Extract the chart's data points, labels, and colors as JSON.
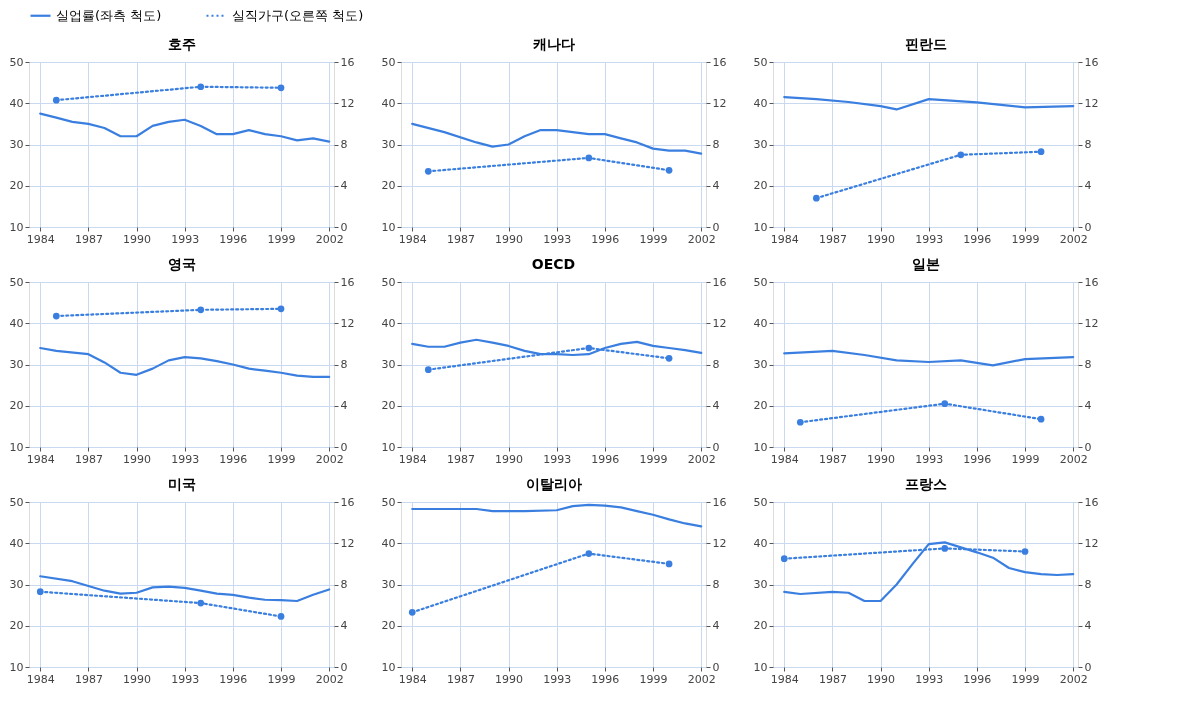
{
  "chart_data": [
    {
      "type": "line",
      "title": "호주",
      "legend": "top",
      "grid": true,
      "xlim": [
        1983.3,
        2002.3
      ],
      "xticks": [
        1984,
        1987,
        1990,
        1993,
        1996,
        1999,
        2002
      ],
      "ylim": [
        10,
        50
      ],
      "yticks": [
        10,
        20,
        30,
        40,
        50
      ],
      "y2lim": [
        0,
        16
      ],
      "y2ticks": [
        0,
        4,
        8,
        12,
        16
      ],
      "series": [
        {
          "name": "실업률(좌측 척도)",
          "color": "#3a7fe0",
          "line_style": "solid",
          "x": [
            1984,
            1985,
            1986,
            1987,
            1988,
            1989,
            1990,
            1991,
            1992,
            1993,
            1994,
            1995,
            1996,
            1997,
            1998,
            1999,
            2000,
            2001,
            2002
          ],
          "values": [
            37.5,
            36.5,
            35.5,
            35,
            34,
            32,
            32,
            34.5,
            35.5,
            36,
            34.5,
            32.5,
            32.5,
            33.5,
            32.5,
            32,
            31,
            31.5,
            30.7
          ]
        },
        {
          "name": "실직가구(오른쪽 척도)",
          "color": "#3a7fe0",
          "axis": "y2",
          "line_style": "dotted",
          "marker": "circle",
          "x": [
            1985,
            1994,
            1999
          ],
          "values": [
            12.3,
            13.6,
            13.5
          ]
        }
      ]
    },
    {
      "type": "line",
      "title": "캐나다",
      "grid": true,
      "xlim": [
        1983.3,
        2002.3
      ],
      "xticks": [
        1984,
        1987,
        1990,
        1993,
        1996,
        1999,
        2002
      ],
      "ylim": [
        10,
        50
      ],
      "yticks": [
        10,
        20,
        30,
        40,
        50
      ],
      "y2lim": [
        0,
        16
      ],
      "y2ticks": [
        0,
        4,
        8,
        12,
        16
      ],
      "series": [
        {
          "name": "실업률(좌측 척도)",
          "color": "#3a7fe0",
          "line_style": "solid",
          "x": [
            1984,
            1986,
            1988,
            1989,
            1990,
            1991,
            1992,
            1993,
            1994,
            1995,
            1996,
            1997,
            1998,
            1999,
            2000,
            2001,
            2002
          ],
          "values": [
            35,
            33,
            30.5,
            29.5,
            30,
            32,
            33.5,
            33.5,
            33,
            32.5,
            32.5,
            31.5,
            30.5,
            29,
            28.5,
            28.5,
            27.8
          ]
        },
        {
          "name": "실직가구(오른쪽 척도)",
          "color": "#3a7fe0",
          "axis": "y2",
          "line_style": "dotted",
          "marker": "circle",
          "x": [
            1985,
            1995,
            2000
          ],
          "values": [
            5.4,
            6.7,
            5.5
          ]
        }
      ]
    },
    {
      "type": "line",
      "title": "핀란드",
      "grid": true,
      "xlim": [
        1983.3,
        2002.3
      ],
      "xticks": [
        1984,
        1987,
        1990,
        1993,
        1996,
        1999,
        2002
      ],
      "ylim": [
        10,
        50
      ],
      "yticks": [
        10,
        20,
        30,
        40,
        50
      ],
      "y2lim": [
        0,
        16
      ],
      "y2ticks": [
        0,
        4,
        8,
        12,
        16
      ],
      "series": [
        {
          "name": "실업률(좌측 척도)",
          "color": "#3a7fe0",
          "line_style": "solid",
          "x": [
            1984,
            1986,
            1988,
            1990,
            1991,
            1993,
            1996,
            1999,
            2002
          ],
          "values": [
            41.5,
            41,
            40.3,
            39.3,
            38.5,
            41,
            40.2,
            39,
            39.3
          ]
        },
        {
          "name": "실직가구(오른쪽 척도)",
          "color": "#3a7fe0",
          "axis": "y2",
          "line_style": "dotted",
          "marker": "circle",
          "x": [
            1986,
            1995,
            2000
          ],
          "values": [
            2.8,
            7.0,
            7.3
          ]
        }
      ]
    },
    {
      "type": "line",
      "title": "영국",
      "grid": true,
      "xlim": [
        1983.3,
        2002.3
      ],
      "xticks": [
        1984,
        1987,
        1990,
        1993,
        1996,
        1999,
        2002
      ],
      "ylim": [
        10,
        50
      ],
      "yticks": [
        10,
        20,
        30,
        40,
        50
      ],
      "y2lim": [
        0,
        16
      ],
      "y2ticks": [
        0,
        4,
        8,
        12,
        16
      ],
      "series": [
        {
          "name": "실업률(좌측 척도)",
          "color": "#3a7fe0",
          "line_style": "solid",
          "x": [
            1984,
            1985,
            1987,
            1988,
            1989,
            1990,
            1991,
            1992,
            1993,
            1994,
            1995,
            1996,
            1997,
            1998,
            1999,
            2000,
            2001,
            2002
          ],
          "values": [
            34,
            33.3,
            32.5,
            30.5,
            28,
            27.5,
            29,
            31,
            31.8,
            31.5,
            30.8,
            30,
            29,
            28.5,
            28,
            27.3,
            27,
            27
          ]
        },
        {
          "name": "실직가구(오른쪽 척도)",
          "color": "#3a7fe0",
          "axis": "y2",
          "line_style": "dotted",
          "marker": "circle",
          "x": [
            1985,
            1994,
            1999
          ],
          "values": [
            12.7,
            13.3,
            13.4
          ]
        }
      ]
    },
    {
      "type": "line",
      "title": "OECD",
      "grid": true,
      "xlim": [
        1983.3,
        2002.3
      ],
      "xticks": [
        1984,
        1987,
        1990,
        1993,
        1996,
        1999,
        2002
      ],
      "ylim": [
        10,
        50
      ],
      "yticks": [
        10,
        20,
        30,
        40,
        50
      ],
      "y2lim": [
        0,
        16
      ],
      "y2ticks": [
        0,
        4,
        8,
        12,
        16
      ],
      "series": [
        {
          "name": "실업률(좌측 척도)",
          "color": "#3a7fe0",
          "line_style": "solid",
          "x": [
            1984,
            1985,
            1986,
            1987,
            1988,
            1989,
            1990,
            1991,
            1992,
            1993,
            1994,
            1995,
            1996,
            1997,
            1998,
            1999,
            2000,
            2001,
            2002
          ],
          "values": [
            35,
            34.3,
            34.3,
            35.3,
            36,
            35.3,
            34.5,
            33.3,
            32.5,
            32.5,
            32.3,
            32.5,
            34,
            35,
            35.5,
            34.5,
            34,
            33.5,
            32.8
          ]
        },
        {
          "name": "실직가구(오른쪽 척도)",
          "color": "#3a7fe0",
          "axis": "y2",
          "line_style": "dotted",
          "marker": "circle",
          "x": [
            1985,
            1995,
            2000
          ],
          "values": [
            7.5,
            9.6,
            8.6
          ]
        }
      ]
    },
    {
      "type": "line",
      "title": "일본",
      "grid": true,
      "xlim": [
        1983.3,
        2002.3
      ],
      "xticks": [
        1984,
        1987,
        1990,
        1993,
        1996,
        1999,
        2002
      ],
      "ylim": [
        10,
        50
      ],
      "yticks": [
        10,
        20,
        30,
        40,
        50
      ],
      "y2lim": [
        0,
        16
      ],
      "y2ticks": [
        0,
        4,
        8,
        12,
        16
      ],
      "series": [
        {
          "name": "실업률(좌측 척도)",
          "color": "#3a7fe0",
          "line_style": "solid",
          "x": [
            1984,
            1987,
            1989,
            1991,
            1993,
            1995,
            1997,
            1999,
            2002
          ],
          "values": [
            32.7,
            33.3,
            32.3,
            31,
            30.6,
            31,
            29.8,
            31.3,
            31.8
          ]
        },
        {
          "name": "실직가구(오른쪽 척도)",
          "color": "#3a7fe0",
          "axis": "y2",
          "line_style": "dotted",
          "marker": "circle",
          "x": [
            1985,
            1994,
            2000
          ],
          "values": [
            2.4,
            4.2,
            2.7
          ]
        }
      ]
    },
    {
      "type": "line",
      "title": "미국",
      "grid": true,
      "xlim": [
        1983.3,
        2002.3
      ],
      "xticks": [
        1984,
        1987,
        1990,
        1993,
        1996,
        1999,
        2002
      ],
      "ylim": [
        10,
        50
      ],
      "yticks": [
        10,
        20,
        30,
        40,
        50
      ],
      "y2lim": [
        0,
        16
      ],
      "y2ticks": [
        0,
        4,
        8,
        12,
        16
      ],
      "series": [
        {
          "name": "실업률(좌측 척도)",
          "color": "#3a7fe0",
          "line_style": "solid",
          "x": [
            1984,
            1986,
            1988,
            1989,
            1990,
            1991,
            1992,
            1993,
            1994,
            1995,
            1996,
            1997,
            1998,
            1999,
            2000,
            2001,
            2002
          ],
          "values": [
            32,
            30.8,
            28.5,
            27.8,
            28,
            29.3,
            29.5,
            29.2,
            28.5,
            27.8,
            27.5,
            26.8,
            26.3,
            26.2,
            26,
            27.5,
            28.8
          ]
        },
        {
          "name": "실직가구(오른쪽 척도)",
          "color": "#3a7fe0",
          "axis": "y2",
          "line_style": "dotted",
          "marker": "circle",
          "x": [
            1984,
            1994,
            1999
          ],
          "values": [
            7.3,
            6.2,
            4.9
          ]
        }
      ]
    },
    {
      "type": "line",
      "title": "이탈리아",
      "grid": true,
      "xlim": [
        1983.3,
        2002.3
      ],
      "xticks": [
        1984,
        1987,
        1990,
        1993,
        1996,
        1999,
        2002
      ],
      "ylim": [
        10,
        50
      ],
      "yticks": [
        10,
        20,
        30,
        40,
        50
      ],
      "y2lim": [
        0,
        16
      ],
      "y2ticks": [
        0,
        4,
        8,
        12,
        16
      ],
      "series": [
        {
          "name": "실업률(좌측 척도)",
          "color": "#3a7fe0",
          "line_style": "solid",
          "x": [
            1984,
            1986,
            1988,
            1989,
            1991,
            1993,
            1994,
            1995,
            1996,
            1997,
            1998,
            1999,
            2000,
            2001,
            2002
          ],
          "values": [
            48.3,
            48.3,
            48.3,
            47.8,
            47.8,
            48,
            49,
            49.3,
            49.1,
            48.7,
            47.8,
            46.9,
            45.8,
            44.8,
            44.1
          ]
        },
        {
          "name": "실직가구(오른쪽 척도)",
          "color": "#3a7fe0",
          "axis": "y2",
          "line_style": "dotted",
          "marker": "circle",
          "x": [
            1984,
            1995,
            2000
          ],
          "values": [
            5.3,
            11.0,
            10.0
          ]
        }
      ]
    },
    {
      "type": "line",
      "title": "프랑스",
      "grid": true,
      "xlim": [
        1983.3,
        2002.3
      ],
      "xticks": [
        1984,
        1987,
        1990,
        1993,
        1996,
        1999,
        2002
      ],
      "ylim": [
        10,
        50
      ],
      "yticks": [
        10,
        20,
        30,
        40,
        50
      ],
      "y2lim": [
        0,
        16
      ],
      "y2ticks": [
        0,
        4,
        8,
        12,
        16
      ],
      "series": [
        {
          "name": "실업률(좌측 척도)",
          "color": "#3a7fe0",
          "line_style": "solid",
          "x": [
            1984,
            1985,
            1987,
            1988,
            1989,
            1990,
            1991,
            1992,
            1993,
            1994,
            1995,
            1996,
            1997,
            1998,
            1999,
            2000,
            2001,
            2002
          ],
          "values": [
            28.2,
            27.7,
            28.2,
            28,
            26,
            26,
            30,
            35,
            39.8,
            40.2,
            39,
            37.8,
            36.5,
            34,
            33,
            32.5,
            32.3,
            32.5
          ]
        },
        {
          "name": "실직가구(오른쪽 척도)",
          "color": "#3a7fe0",
          "axis": "y2",
          "line_style": "dotted",
          "marker": "circle",
          "x": [
            1984,
            1994,
            1999
          ],
          "values": [
            10.5,
            11.5,
            11.2
          ]
        }
      ]
    }
  ]
}
